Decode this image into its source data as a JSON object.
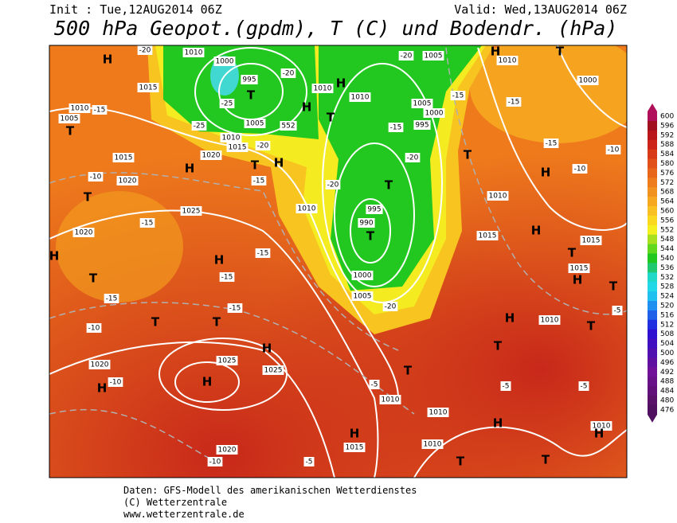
{
  "header": {
    "init": "Init : Tue,12AUG2014 06Z",
    "valid": "Valid: Wed,13AUG2014 06Z",
    "title": "500 hPa Geopot.(gpdm), T (C) und Bodendr. (hPa)"
  },
  "scale": {
    "labels": [
      600,
      596,
      592,
      588,
      584,
      580,
      576,
      572,
      568,
      564,
      560,
      556,
      552,
      548,
      544,
      540,
      536,
      532,
      528,
      524,
      520,
      516,
      512,
      508,
      504,
      500,
      496,
      492,
      488,
      484,
      480,
      476
    ],
    "colors": [
      "#b0105a",
      "#a0101e",
      "#b8161a",
      "#cc2418",
      "#d83a18",
      "#e05018",
      "#e8661a",
      "#ee7c1c",
      "#f2921e",
      "#f6a820",
      "#f8c020",
      "#fad820",
      "#f4f020",
      "#a8e020",
      "#60d820",
      "#20c820",
      "#20c870",
      "#20d8c8",
      "#20d8e8",
      "#20c0f0",
      "#2090f0",
      "#2060e8",
      "#2030e0",
      "#3010d0",
      "#4010c0",
      "#5010b0",
      "#6010a0",
      "#701098",
      "#681088",
      "#601078",
      "#581068",
      "#501060"
    ]
  },
  "map_labels": [
    "1010",
    "1000",
    "995",
    "T",
    "H",
    "1015",
    "1010",
    "1005",
    "T",
    "1005",
    "552",
    "1010",
    "1015",
    "-20",
    "1020",
    "H",
    "T",
    "H",
    "1015",
    "1020",
    "-10",
    "T",
    "1010",
    "1025",
    "1020",
    "-15",
    "H",
    "T",
    "H",
    "-15",
    "-15",
    "995",
    "990",
    "T",
    "T",
    "1000",
    "1005",
    "-20",
    "-15",
    "-10",
    "T",
    "T",
    "-15",
    "H",
    "1025",
    "1025",
    "1020",
    "H",
    "H",
    "-10",
    "T",
    "-5",
    "1010",
    "H",
    "1015",
    "-5",
    "1020",
    "-10",
    "1010",
    "1010",
    "T",
    "T",
    "H",
    "-5",
    "T",
    "H",
    "H",
    "1015",
    "1015",
    "1015",
    "H",
    "T",
    "1010",
    "T",
    "-5",
    "T",
    "-5",
    "1010",
    "H",
    "1010",
    "H",
    "T",
    "T",
    "1010",
    "H",
    "1000",
    "-15",
    "-15",
    "-10",
    "-10",
    "1005",
    "-20",
    "H",
    "T",
    "H",
    "1010",
    "1010",
    "1005",
    "995",
    "1000",
    "-15",
    "-15",
    "-20",
    "-20",
    "-15",
    "-25",
    "-20",
    "-25",
    "-20",
    "-15"
  ],
  "footer": [
    "Daten: GFS-Modell des amerikanischen Wetterdienstes",
    "(C) Wetterzentrale",
    "www.wetterzentrale.de"
  ]
}
